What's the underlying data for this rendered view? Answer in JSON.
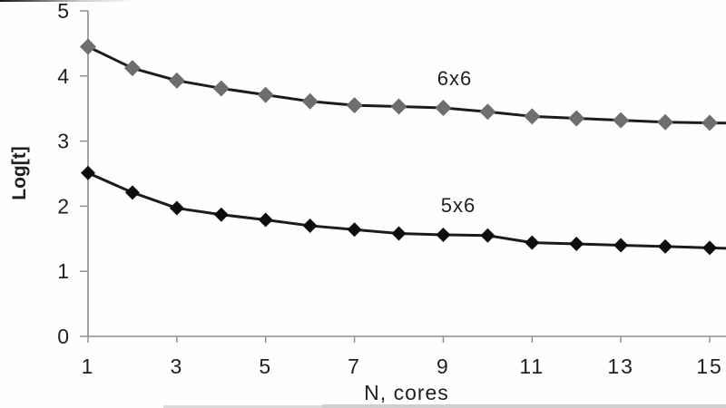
{
  "chart_data": {
    "type": "line",
    "title": "",
    "xlabel": "N, cores",
    "ylabel": "Log[t]",
    "x": [
      1,
      2,
      3,
      4,
      5,
      6,
      7,
      8,
      9,
      10,
      11,
      12,
      13,
      14,
      15
    ],
    "x_tick_values": [
      1,
      3,
      5,
      7,
      9,
      11,
      13,
      15
    ],
    "x_tick_labels": [
      "1",
      "3",
      "5",
      "7",
      "9",
      "11",
      "13",
      "15"
    ],
    "y_tick_values": [
      0,
      1,
      2,
      3,
      4,
      5
    ],
    "y_tick_labels": [
      "0",
      "1",
      "2",
      "3",
      "4",
      "5"
    ],
    "xlim": [
      1,
      15.37
    ],
    "ylim": [
      0,
      5
    ],
    "grid": false,
    "legend_position": "inline-labels",
    "axis_color": "#8c8c8c",
    "text_color": "#1f1f1f",
    "extend_lines_to_right_edge": true,
    "series": [
      {
        "name": "6x6",
        "marker": "diamond",
        "marker_color": "#6e6e6e",
        "line_color": "#1c1c1c",
        "values": [
          4.45,
          4.12,
          3.93,
          3.81,
          3.71,
          3.61,
          3.55,
          3.53,
          3.51,
          3.45,
          3.38,
          3.35,
          3.32,
          3.29,
          3.28
        ]
      },
      {
        "name": "5x6",
        "marker": "diamond",
        "marker_color": "#0e0e0e",
        "line_color": "#1c1c1c",
        "values": [
          2.51,
          2.21,
          1.97,
          1.87,
          1.79,
          1.7,
          1.64,
          1.58,
          1.56,
          1.55,
          1.44,
          1.42,
          1.4,
          1.38,
          1.36
        ]
      }
    ]
  }
}
